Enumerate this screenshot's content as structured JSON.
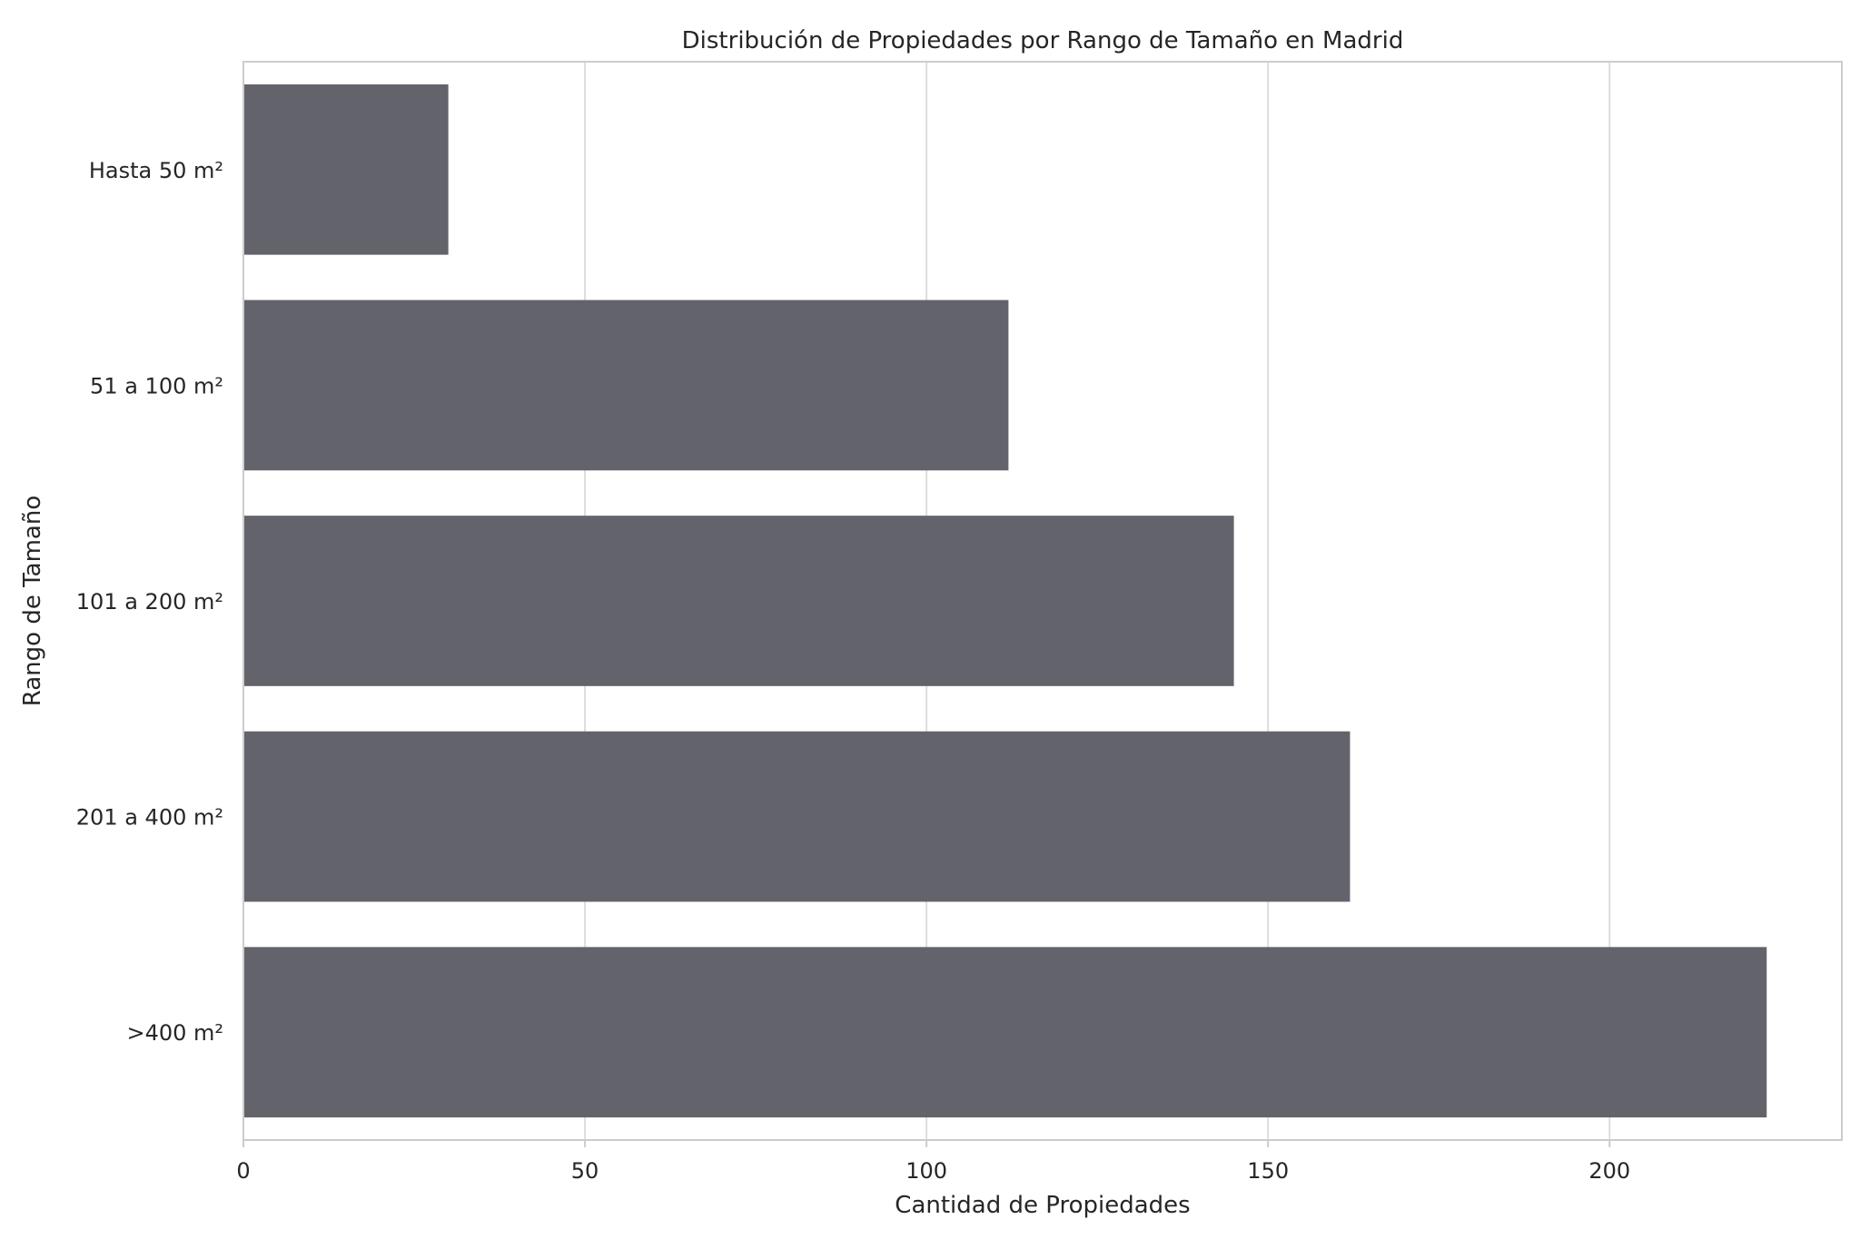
{
  "chart_data": {
    "type": "bar",
    "orientation": "horizontal",
    "title": "Distribución de Propiedades por Rango de Tamaño en Madrid",
    "xlabel": "Cantidad de Propiedades",
    "ylabel": "Rango de Tamaño",
    "categories": [
      "Hasta 50 m²",
      "51 a 100 m²",
      "101 a 200 m²",
      "201 a 400 m²",
      ">400 m²"
    ],
    "values": [
      30,
      112,
      145,
      162,
      223
    ],
    "xlim": [
      0,
      234
    ],
    "xticks": [
      0,
      50,
      100,
      150,
      200
    ],
    "grid": true,
    "bar_color": "#63636b",
    "grid_color": "#dddddd",
    "frame_color": "#cccccc"
  }
}
